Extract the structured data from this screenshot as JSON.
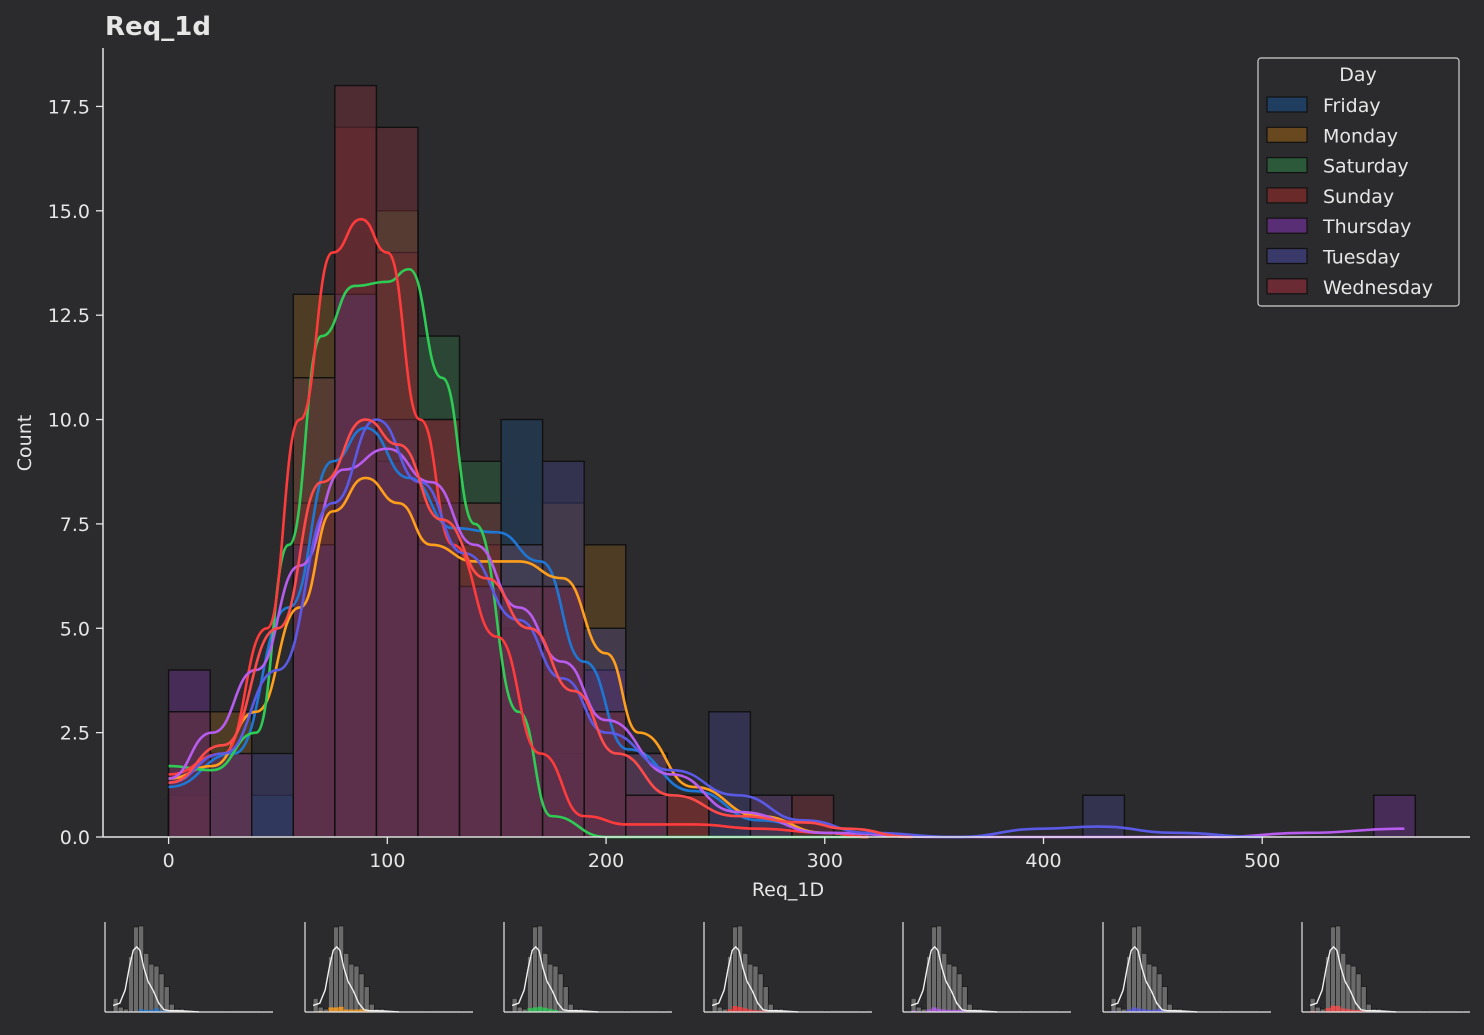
{
  "chart_data": {
    "type": "histogram",
    "title": "Req_1d",
    "xlabel": "Req_1D",
    "ylabel": "Count",
    "xlim": [
      -30,
      595
    ],
    "ylim": [
      0,
      18.9
    ],
    "xticks": [
      "0",
      "100",
      "200",
      "300",
      "400",
      "500"
    ],
    "xtick_values": [
      0,
      100,
      200,
      300,
      400,
      500
    ],
    "yticks": [
      "0.0",
      "2.5",
      "5.0",
      "7.5",
      "10.0",
      "12.5",
      "15.0",
      "17.5"
    ],
    "ytick_values": [
      0,
      2.5,
      5,
      7.5,
      10,
      12.5,
      15,
      17.5
    ],
    "bin_width": 19,
    "bin_start": 0,
    "legend": {
      "title": "Day",
      "position": "top-right",
      "entries": [
        "Friday",
        "Monday",
        "Saturday",
        "Sunday",
        "Thursday",
        "Tuesday",
        "Wednesday"
      ]
    },
    "series": [
      {
        "name": "Friday",
        "color": "#1f77d4",
        "fill": "#1f3f63",
        "bins": [
          [
            0,
            1
          ],
          [
            38,
            1
          ],
          [
            95,
            8
          ],
          [
            114,
            6
          ],
          [
            133,
            6
          ],
          [
            152,
            10
          ],
          [
            171,
            4
          ],
          [
            190,
            3
          ]
        ],
        "kde": [
          [
            0,
            1.2
          ],
          [
            30,
            2
          ],
          [
            55,
            5.5
          ],
          [
            75,
            9
          ],
          [
            90,
            9.8
          ],
          [
            110,
            8.6
          ],
          [
            130,
            7.4
          ],
          [
            150,
            7.3
          ],
          [
            170,
            6.6
          ],
          [
            190,
            4.2
          ],
          [
            210,
            2.1
          ],
          [
            240,
            1.1
          ],
          [
            270,
            0.4
          ],
          [
            300,
            0.1
          ],
          [
            320,
            0
          ]
        ]
      },
      {
        "name": "Monday",
        "color": "#ff9f1c",
        "fill": "#6b4a1f",
        "bins": [
          [
            0,
            1
          ],
          [
            19,
            3
          ],
          [
            57,
            13
          ],
          [
            76,
            13
          ],
          [
            95,
            15
          ],
          [
            114,
            7
          ],
          [
            133,
            7
          ],
          [
            152,
            7
          ],
          [
            171,
            8
          ],
          [
            190,
            7
          ],
          [
            209,
            2
          ],
          [
            228,
            1
          ]
        ],
        "kde": [
          [
            0,
            1.4
          ],
          [
            20,
            1.7
          ],
          [
            40,
            3
          ],
          [
            60,
            5.5
          ],
          [
            75,
            7.8
          ],
          [
            90,
            8.6
          ],
          [
            105,
            8
          ],
          [
            120,
            7
          ],
          [
            140,
            6.6
          ],
          [
            160,
            6.6
          ],
          [
            180,
            6.2
          ],
          [
            200,
            4.4
          ],
          [
            215,
            2.5
          ],
          [
            240,
            1.2
          ],
          [
            270,
            0.5
          ],
          [
            300,
            0.1
          ],
          [
            320,
            0
          ]
        ]
      },
      {
        "name": "Saturday",
        "color": "#2ecc55",
        "fill": "#2b5c3a",
        "bins": [
          [
            0,
            1
          ],
          [
            57,
            11
          ],
          [
            76,
            13
          ],
          [
            95,
            15
          ],
          [
            114,
            12
          ],
          [
            133,
            9
          ],
          [
            152,
            6
          ],
          [
            171,
            2
          ]
        ],
        "kde": [
          [
            0,
            1.7
          ],
          [
            20,
            1.6
          ],
          [
            40,
            2.5
          ],
          [
            55,
            7
          ],
          [
            70,
            12
          ],
          [
            85,
            13.2
          ],
          [
            100,
            13.3
          ],
          [
            110,
            13.6
          ],
          [
            125,
            11
          ],
          [
            140,
            7.5
          ],
          [
            160,
            3
          ],
          [
            175,
            0.5
          ],
          [
            200,
            0
          ],
          [
            320,
            0
          ]
        ]
      },
      {
        "name": "Sunday",
        "color": "#ff3b3b",
        "fill": "#6e2a2a",
        "bins": [
          [
            0,
            1
          ],
          [
            57,
            8
          ],
          [
            76,
            17
          ],
          [
            95,
            14
          ],
          [
            114,
            10
          ],
          [
            133,
            7
          ],
          [
            152,
            5
          ],
          [
            171,
            4
          ],
          [
            190,
            4
          ],
          [
            209,
            2
          ],
          [
            228,
            1
          ],
          [
            266,
            1
          ]
        ],
        "kde": [
          [
            0,
            1.5
          ],
          [
            25,
            2
          ],
          [
            45,
            5
          ],
          [
            60,
            10
          ],
          [
            75,
            14
          ],
          [
            88,
            14.8
          ],
          [
            100,
            14
          ],
          [
            115,
            10
          ],
          [
            130,
            7
          ],
          [
            150,
            4.8
          ],
          [
            170,
            2
          ],
          [
            190,
            0.5
          ],
          [
            210,
            0.3
          ],
          [
            240,
            0.3
          ],
          [
            270,
            0.2
          ],
          [
            300,
            0.1
          ],
          [
            320,
            0
          ]
        ]
      },
      {
        "name": "Thursday",
        "color": "#b85cf0",
        "fill": "#5d2e78",
        "bins": [
          [
            0,
            4
          ],
          [
            19,
            2
          ],
          [
            57,
            7
          ],
          [
            76,
            13
          ],
          [
            95,
            9
          ],
          [
            114,
            7
          ],
          [
            133,
            6
          ],
          [
            152,
            6
          ],
          [
            171,
            6
          ],
          [
            190,
            4
          ],
          [
            209,
            1
          ],
          [
            551,
            1
          ]
        ],
        "kde": [
          [
            0,
            1.4
          ],
          [
            20,
            2.5
          ],
          [
            40,
            4
          ],
          [
            60,
            6.5
          ],
          [
            80,
            8.8
          ],
          [
            100,
            9.3
          ],
          [
            120,
            8.5
          ],
          [
            140,
            7
          ],
          [
            160,
            5.5
          ],
          [
            180,
            4.2
          ],
          [
            200,
            2.8
          ],
          [
            230,
            1.5
          ],
          [
            260,
            0.6
          ],
          [
            300,
            0.1
          ],
          [
            350,
            0
          ],
          [
            480,
            0
          ],
          [
            520,
            0.1
          ],
          [
            565,
            0.2
          ]
        ]
      },
      {
        "name": "Tuesday",
        "color": "#5a5ae6",
        "fill": "#3a3a6e",
        "bins": [
          [
            0,
            3
          ],
          [
            38,
            2
          ],
          [
            57,
            7
          ],
          [
            76,
            13
          ],
          [
            95,
            10
          ],
          [
            114,
            8
          ],
          [
            133,
            6
          ],
          [
            152,
            7
          ],
          [
            171,
            9
          ],
          [
            190,
            5
          ],
          [
            209,
            2
          ],
          [
            247,
            3
          ],
          [
            266,
            1
          ],
          [
            418,
            1
          ]
        ],
        "kde": [
          [
            0,
            1.3
          ],
          [
            25,
            2
          ],
          [
            50,
            4
          ],
          [
            75,
            8
          ],
          [
            95,
            10
          ],
          [
            115,
            8.5
          ],
          [
            135,
            6.8
          ],
          [
            160,
            5.2
          ],
          [
            180,
            3.8
          ],
          [
            200,
            2.5
          ],
          [
            230,
            1.6
          ],
          [
            260,
            1
          ],
          [
            290,
            0.4
          ],
          [
            320,
            0.1
          ],
          [
            360,
            0
          ],
          [
            400,
            0.2
          ],
          [
            425,
            0.25
          ],
          [
            460,
            0.1
          ],
          [
            500,
            0
          ]
        ]
      },
      {
        "name": "Wednesday",
        "color": "#ff4a4a",
        "fill": "#6e2b36",
        "bins": [
          [
            0,
            3
          ],
          [
            57,
            11
          ],
          [
            76,
            18
          ],
          [
            95,
            17
          ],
          [
            114,
            10
          ],
          [
            133,
            8
          ],
          [
            152,
            6
          ],
          [
            171,
            6
          ],
          [
            190,
            3
          ],
          [
            209,
            1
          ],
          [
            228,
            1
          ],
          [
            285,
            1
          ]
        ],
        "kde": [
          [
            0,
            1.3
          ],
          [
            25,
            2.2
          ],
          [
            50,
            5
          ],
          [
            70,
            8.5
          ],
          [
            90,
            10
          ],
          [
            105,
            9.4
          ],
          [
            125,
            7.6
          ],
          [
            145,
            6.2
          ],
          [
            165,
            5
          ],
          [
            185,
            3.5
          ],
          [
            205,
            2
          ],
          [
            230,
            1
          ],
          [
            260,
            0.5
          ],
          [
            290,
            0.35
          ],
          [
            310,
            0.2
          ],
          [
            340,
            0
          ]
        ]
      }
    ]
  },
  "thumbnails": [
    {
      "name": "Friday",
      "color": "#1f77d4"
    },
    {
      "name": "Monday",
      "color": "#ff9f1c"
    },
    {
      "name": "Saturday",
      "color": "#2ecc55"
    },
    {
      "name": "Sunday",
      "color": "#ff3b3b"
    },
    {
      "name": "Thursday",
      "color": "#b85cf0"
    },
    {
      "name": "Tuesday",
      "color": "#5a5ae6"
    },
    {
      "name": "Wednesday",
      "color": "#ff4a4a"
    }
  ],
  "colors": {
    "background": "#2b2b2d",
    "axis": "#e6e6e6",
    "overlap": "#8a8e94"
  }
}
